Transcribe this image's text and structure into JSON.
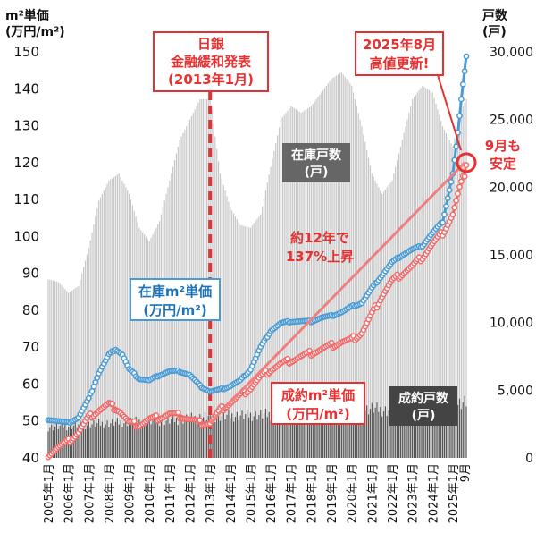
{
  "units": {
    "left_line1": "m²単価",
    "left_line2": "(万円/m²)",
    "right_line1": "戸数",
    "right_line2": "(戸)"
  },
  "annotations": {
    "boj_line1": "日銀",
    "boj_line2": "金融緩和発表",
    "boj_line3": "(2013年1月)",
    "high_line1": "2025年8月",
    "high_line2": "高値更新!",
    "sept_line1": "9月も",
    "sept_line2": "安定",
    "growth_line1": "約12年で",
    "growth_line2": "137%上昇",
    "inv_price_line1": "在庫m²単価",
    "inv_price_line2": "(万円/m²)",
    "con_price_line1": "成約m²単価",
    "con_price_line2": "(万円/m²)",
    "inv_units_line1": "在庫戸数",
    "inv_units_line2": "(戸)",
    "con_units_line1": "成約戸数",
    "con_units_line2": "(戸)"
  },
  "colors": {
    "inventory_price": "#4a9ad4",
    "contract_price": "#f06a6a",
    "inventory_bars": "#c8c8c8",
    "contract_bars": "#555555",
    "accent_red": "#e83030"
  },
  "chart_data": {
    "type": "line",
    "x_axis": {
      "tick_labels": [
        "2005年1月",
        "2006年1月",
        "2007年1月",
        "2008年1月",
        "2009年1月",
        "2010年1月",
        "2011年1月",
        "2012年1月",
        "2013年1月",
        "2014年1月",
        "2015年1月",
        "2016年1月",
        "2017年1月",
        "2018年1月",
        "2019年1月",
        "2020年1月",
        "2021年1月",
        "2022年1月",
        "2023年1月",
        "2024年1月",
        "2025年1月"
      ],
      "end_label": "9月",
      "range": [
        "2005-01",
        "2025-09"
      ]
    },
    "y_left": {
      "range": [
        40,
        150
      ],
      "ticks": [
        40,
        50,
        60,
        70,
        80,
        90,
        100,
        110,
        120,
        130,
        140,
        150
      ]
    },
    "y_right": {
      "range": [
        0,
        30000
      ],
      "ticks": [
        0,
        5000,
        10000,
        15000,
        20000,
        25000,
        30000
      ],
      "tick_labels": [
        "0",
        "5,000",
        "10,000",
        "15,000",
        "20,000",
        "25,000",
        "30,000"
      ]
    },
    "series": [
      {
        "name": "在庫m²単価",
        "axis": "left",
        "style": "line-markers",
        "points": [
          [
            "2005-01",
            50.5
          ],
          [
            "2005-07",
            50
          ],
          [
            "2006-01",
            49.5
          ],
          [
            "2006-07",
            51
          ],
          [
            "2007-01",
            56
          ],
          [
            "2007-07",
            63
          ],
          [
            "2008-01",
            68
          ],
          [
            "2008-05",
            69.5
          ],
          [
            "2008-09",
            68
          ],
          [
            "2009-01",
            64
          ],
          [
            "2009-07",
            61.5
          ],
          [
            "2010-01",
            61
          ],
          [
            "2010-07",
            62.5
          ],
          [
            "2011-01",
            63.5
          ],
          [
            "2011-07",
            63.5
          ],
          [
            "2012-01",
            62.5
          ],
          [
            "2012-07",
            59.5
          ],
          [
            "2013-01",
            58
          ],
          [
            "2013-07",
            58.5
          ],
          [
            "2014-01",
            59.5
          ],
          [
            "2014-07",
            61
          ],
          [
            "2015-01",
            64
          ],
          [
            "2015-07",
            70
          ],
          [
            "2016-01",
            74.5
          ],
          [
            "2016-07",
            76.5
          ],
          [
            "2017-01",
            77
          ],
          [
            "2017-07",
            77
          ],
          [
            "2018-01",
            77
          ],
          [
            "2018-07",
            78
          ],
          [
            "2019-01",
            78.5
          ],
          [
            "2019-07",
            79.5
          ],
          [
            "2020-01",
            81
          ],
          [
            "2020-07",
            82
          ],
          [
            "2021-01",
            86
          ],
          [
            "2021-07",
            89.5
          ],
          [
            "2022-01",
            93
          ],
          [
            "2022-07",
            95
          ],
          [
            "2023-01",
            96.5
          ],
          [
            "2023-07",
            97.5
          ],
          [
            "2024-01",
            101
          ],
          [
            "2024-07",
            104
          ],
          [
            "2025-01",
            117
          ],
          [
            "2025-04",
            128
          ],
          [
            "2025-06",
            137
          ],
          [
            "2025-08",
            145
          ],
          [
            "2025-09",
            149
          ]
        ]
      },
      {
        "name": "成約m²単価",
        "axis": "left",
        "style": "line-markers",
        "points": [
          [
            "2005-01",
            41
          ],
          [
            "2005-07",
            43
          ],
          [
            "2006-01",
            44.5
          ],
          [
            "2006-07",
            47
          ],
          [
            "2007-01",
            51
          ],
          [
            "2007-07",
            53
          ],
          [
            "2008-01",
            54.5
          ],
          [
            "2008-07",
            53
          ],
          [
            "2009-01",
            49.5
          ],
          [
            "2009-07",
            49
          ],
          [
            "2010-01",
            50.5
          ],
          [
            "2010-07",
            51
          ],
          [
            "2011-01",
            52
          ],
          [
            "2011-07",
            51.5
          ],
          [
            "2012-01",
            50.5
          ],
          [
            "2012-07",
            49.5
          ],
          [
            "2013-01",
            49.5
          ],
          [
            "2013-07",
            53
          ],
          [
            "2014-01",
            55
          ],
          [
            "2014-07",
            57
          ],
          [
            "2015-01",
            59
          ],
          [
            "2015-07",
            62
          ],
          [
            "2016-01",
            64
          ],
          [
            "2016-07",
            65.5
          ],
          [
            "2017-01",
            66.5
          ],
          [
            "2017-07",
            67.5
          ],
          [
            "2018-01",
            68.5
          ],
          [
            "2018-07",
            69.5
          ],
          [
            "2019-01",
            70.5
          ],
          [
            "2019-07",
            71.5
          ],
          [
            "2020-01",
            72
          ],
          [
            "2020-07",
            74
          ],
          [
            "2021-01",
            79
          ],
          [
            "2021-07",
            84
          ],
          [
            "2022-01",
            88
          ],
          [
            "2022-07",
            90
          ],
          [
            "2023-01",
            92
          ],
          [
            "2023-07",
            94.5
          ],
          [
            "2024-01",
            98
          ],
          [
            "2024-07",
            101
          ],
          [
            "2025-01",
            106
          ],
          [
            "2025-05",
            113
          ],
          [
            "2025-08",
            117
          ],
          [
            "2025-09",
            120
          ]
        ]
      },
      {
        "name": "在庫戸数",
        "axis": "right",
        "style": "bars-light",
        "points": [
          [
            "2005-01",
            13200
          ],
          [
            "2005-07",
            13000
          ],
          [
            "2006-01",
            12200
          ],
          [
            "2006-07",
            12700
          ],
          [
            "2007-01",
            15500
          ],
          [
            "2007-07",
            19000
          ],
          [
            "2008-01",
            20500
          ],
          [
            "2008-07",
            21000
          ],
          [
            "2009-01",
            19500
          ],
          [
            "2009-07",
            17000
          ],
          [
            "2010-01",
            16000
          ],
          [
            "2010-07",
            17500
          ],
          [
            "2011-01",
            20500
          ],
          [
            "2011-07",
            23500
          ],
          [
            "2012-01",
            25000
          ],
          [
            "2012-07",
            26500
          ],
          [
            "2013-01",
            26500
          ],
          [
            "2013-07",
            21000
          ],
          [
            "2014-01",
            18500
          ],
          [
            "2014-07",
            17200
          ],
          [
            "2015-01",
            17000
          ],
          [
            "2015-07",
            18000
          ],
          [
            "2016-01",
            21500
          ],
          [
            "2016-07",
            25000
          ],
          [
            "2017-01",
            26000
          ],
          [
            "2017-07",
            25500
          ],
          [
            "2018-01",
            26000
          ],
          [
            "2018-07",
            27000
          ],
          [
            "2019-01",
            28000
          ],
          [
            "2019-07",
            28500
          ],
          [
            "2020-01",
            27500
          ],
          [
            "2020-07",
            24500
          ],
          [
            "2021-01",
            21000
          ],
          [
            "2021-07",
            19500
          ],
          [
            "2022-01",
            20500
          ],
          [
            "2022-07",
            23500
          ],
          [
            "2023-01",
            26500
          ],
          [
            "2023-07",
            27500
          ],
          [
            "2024-01",
            27000
          ],
          [
            "2024-07",
            24500
          ],
          [
            "2025-01",
            23000
          ],
          [
            "2025-05",
            25500
          ],
          [
            "2025-09",
            26500
          ]
        ]
      },
      {
        "name": "成約戸数",
        "axis": "right",
        "style": "bars-dark",
        "points": [
          [
            "2005-01",
            2300
          ],
          [
            "2007-01",
            2500
          ],
          [
            "2009-01",
            2700
          ],
          [
            "2011-01",
            2800
          ],
          [
            "2013-01",
            3100
          ],
          [
            "2015-01",
            3200
          ],
          [
            "2017-01",
            3300
          ],
          [
            "2019-01",
            3200
          ],
          [
            "2021-01",
            3700
          ],
          [
            "2023-01",
            3300
          ],
          [
            "2025-01",
            4000
          ],
          [
            "2025-09",
            4200
          ]
        ]
      }
    ],
    "annotation_points": {
      "boj_date": "2013-01",
      "growth_line_start": [
        "2013-01",
        49.5
      ],
      "growth_line_end": [
        "2025-08",
        120
      ],
      "circle_at": [
        "2025-09",
        120
      ]
    }
  }
}
